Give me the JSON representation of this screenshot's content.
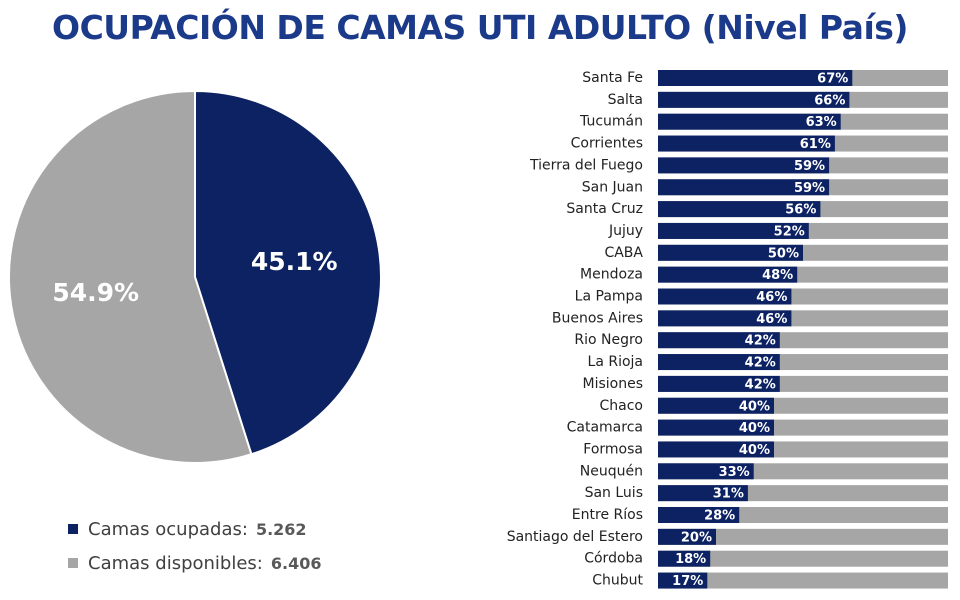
{
  "chart_data": [
    {
      "type": "pie",
      "title": "OCUPACIÓN DE CAMAS UTI ADULTO (Nivel País)",
      "slices": [
        {
          "name": "Camas ocupadas:",
          "count": "5.262",
          "percent": 45.1,
          "label": "45.1%",
          "color": "#0d2263"
        },
        {
          "name": "Camas disponibles:",
          "count": "6.406",
          "percent": 54.9,
          "label": "54.9%",
          "color": "#a6a6a6"
        }
      ],
      "legend_position": "bottom-left"
    },
    {
      "type": "bar",
      "orientation": "horizontal",
      "stacked": true,
      "categories": [
        "Santa Fe",
        "Salta",
        "Tucumán",
        "Corrientes",
        "Tierra del Fuego",
        "San Juan",
        "Santa Cruz",
        "Jujuy",
        "CABA",
        "Mendoza",
        "La Pampa",
        "Buenos Aires",
        "Rio Negro",
        "La Rioja",
        "Misiones",
        "Chaco",
        "Catamarca",
        "Formosa",
        "Neuquén",
        "San Luis",
        "Entre Ríos",
        "Santiago del Estero",
        "Córdoba",
        "Chubut"
      ],
      "values": [
        67,
        66,
        63,
        61,
        59,
        59,
        56,
        52,
        50,
        48,
        46,
        46,
        42,
        42,
        42,
        40,
        40,
        40,
        33,
        31,
        28,
        20,
        18,
        17
      ],
      "value_labels": [
        "67%",
        "66%",
        "63%",
        "61%",
        "59%",
        "59%",
        "56%",
        "52%",
        "50%",
        "48%",
        "46%",
        "46%",
        "42%",
        "42%",
        "42%",
        "40%",
        "40%",
        "40%",
        "33%",
        "31%",
        "28%",
        "20%",
        "18%",
        "17%"
      ],
      "xlim": [
        0,
        100
      ],
      "colors": {
        "occupied": "#0d2263",
        "remaining": "#a6a6a6"
      },
      "grid": false
    }
  ]
}
